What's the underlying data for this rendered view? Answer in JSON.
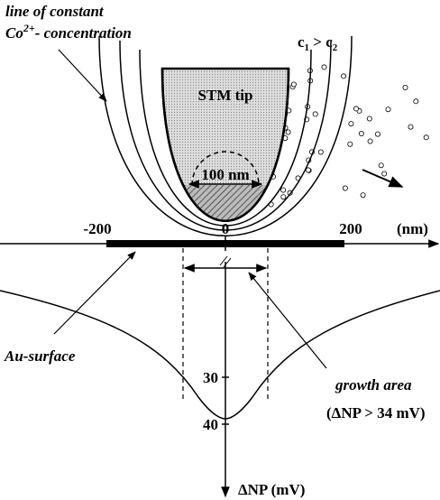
{
  "concentration_label": {
    "line1": "line of constant",
    "species": "Co",
    "charge": "2+",
    "line2": "- concentration"
  },
  "tip": "STM tip",
  "tip_size": "100 nm",
  "gradient": {
    "c1": "c",
    "sub1": "1",
    "op": " > c",
    "sub2": "2"
  },
  "x_axis": {
    "ticks": [
      "-200",
      "0",
      "200"
    ],
    "unit": "(nm)"
  },
  "y_axis": {
    "ticks": [
      "30",
      "40"
    ],
    "label": "ΔNP (mV)"
  },
  "surface": "Au-surface",
  "growth": {
    "title": "growth area",
    "condition": "(ΔNP > 34 mV)"
  }
}
